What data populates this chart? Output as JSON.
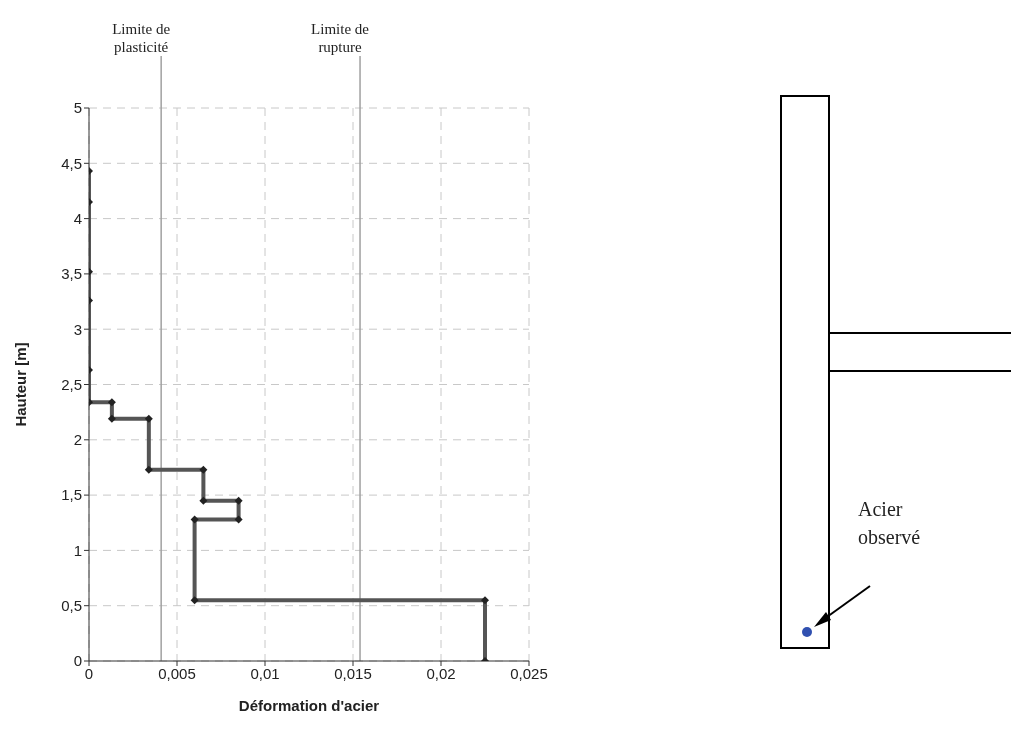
{
  "chart_data": {
    "type": "line",
    "xlabel": "Déformation d'acier",
    "ylabel": "Hauteur [m]",
    "x": [
      0,
      0,
      0,
      0,
      0,
      0,
      0.0013,
      0.0013,
      0.0034,
      0.0034,
      0.0065,
      0.0065,
      0.0085,
      0.0085,
      0.006,
      0.006,
      0.0225,
      0.0225
    ],
    "series": [
      {
        "color": "#555555",
        "values": [
          4.43,
          4.15,
          3.52,
          3.26,
          2.63,
          2.34,
          2.34,
          2.19,
          2.19,
          1.73,
          1.73,
          1.45,
          1.45,
          1.28,
          1.28,
          0.55,
          0.55,
          0
        ]
      }
    ],
    "xlim": [
      0,
      0.025
    ],
    "xticks": [
      0,
      {
        "value": 0.005,
        "label": "0,005"
      },
      {
        "value": 0.01,
        "label": "0,01"
      },
      {
        "value": 0.015,
        "label": "0,015"
      },
      {
        "value": 0.02,
        "label": "0,02"
      },
      {
        "value": 0.025,
        "label": "0,025"
      }
    ],
    "ylim": [
      0,
      5
    ],
    "yticks": [
      0,
      {
        "value": 0.5,
        "label": "0,5"
      },
      1,
      {
        "value": 1.5,
        "label": "1,5"
      },
      2,
      {
        "value": 2.5,
        "label": "2,5"
      },
      3,
      {
        "value": 3.5,
        "label": "3,5"
      },
      4,
      {
        "value": 4.5,
        "label": "4,5"
      },
      5
    ],
    "ref_lines": [
      {
        "axis": "x",
        "value": 0.0041,
        "label": "Limite de plasticité",
        "color": "#a0a0a0"
      },
      {
        "axis": "x",
        "value": 0.0154,
        "label": "Limite de rupture",
        "color": "#a0a0a0"
      }
    ],
    "grid": true,
    "marker": "diamond",
    "line_style": "solid",
    "annotations": [
      "Acier observé"
    ]
  }
}
